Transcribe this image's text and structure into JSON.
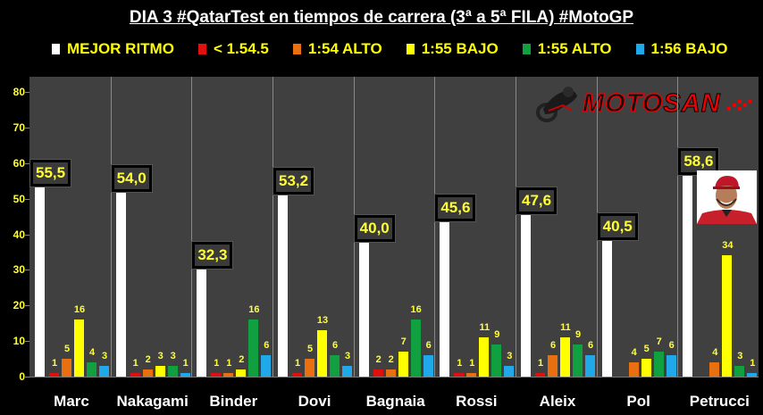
{
  "title": "DIA 3 #QatarTest en tiempos de carrera (3ª a 5ª FILA) #MotoGP",
  "legend": [
    {
      "label": "MEJOR RITMO",
      "color": "#ffffff"
    },
    {
      "label": "< 1.54.5",
      "color": "#e01010"
    },
    {
      "label": "1:54 ALTO",
      "color": "#e87010"
    },
    {
      "label": "1:55 BAJO",
      "color": "#ffff00"
    },
    {
      "label": "1:55 ALTO",
      "color": "#10a040"
    },
    {
      "label": "1:56 BAJO",
      "color": "#20a8e8"
    }
  ],
  "logo": {
    "part1": "MOTO",
    "part2": "SAN"
  },
  "chart_data": {
    "type": "bar",
    "title": "DIA 3 #QatarTest en tiempos de carrera (3ª a 5ª FILA) #MotoGP",
    "xlabel": "",
    "ylabel": "",
    "ylim": [
      0,
      80
    ],
    "yticks": [
      0,
      10,
      20,
      30,
      40,
      50,
      60,
      70,
      80
    ],
    "grid": false,
    "legend_position": "top",
    "categories": [
      "Marc",
      "Nakagami",
      "Binder",
      "Dovi",
      "Bagnaia",
      "Rossi",
      "Aleix",
      "Pol",
      "Petrucci"
    ],
    "series": [
      {
        "name": "MEJOR RITMO",
        "color": "#ffffff",
        "values": [
          55.5,
          54.0,
          32.3,
          53.2,
          40.0,
          45.6,
          47.6,
          40.5,
          58.6
        ],
        "labels": [
          "55,5",
          "54,0",
          "32,3",
          "53,2",
          "40,0",
          "45,6",
          "47,6",
          "40,5",
          "58,6"
        ]
      },
      {
        "name": "< 1.54.5",
        "color": "#e01010",
        "values": [
          1,
          1,
          1,
          1,
          2,
          1,
          1,
          0,
          0
        ]
      },
      {
        "name": "1:54 ALTO",
        "color": "#e87010",
        "values": [
          5,
          2,
          1,
          5,
          2,
          1,
          6,
          4,
          4
        ]
      },
      {
        "name": "1:55 BAJO",
        "color": "#ffff00",
        "values": [
          16,
          3,
          2,
          13,
          7,
          11,
          11,
          5,
          34
        ]
      },
      {
        "name": "1:55 ALTO",
        "color": "#10a040",
        "values": [
          4,
          3,
          16,
          6,
          16,
          9,
          9,
          7,
          3
        ]
      },
      {
        "name": "1:56 BAJO",
        "color": "#20a8e8",
        "values": [
          3,
          1,
          6,
          3,
          6,
          3,
          6,
          6,
          1
        ]
      }
    ]
  }
}
